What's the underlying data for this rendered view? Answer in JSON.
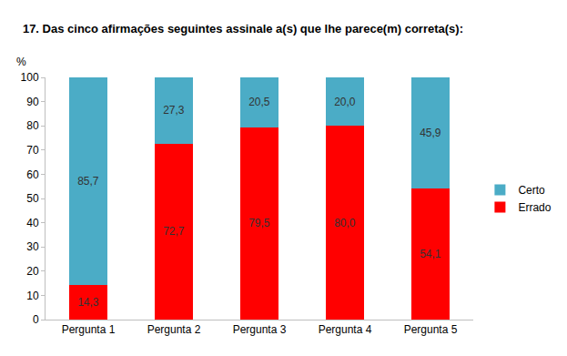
{
  "chart_data": {
    "type": "bar",
    "title": "17. Das cinco afirmações seguintes assinale a(s) que lhe parece(m) correta(s):",
    "y_label": "%",
    "categories": [
      "Pergunta 1",
      "Pergunta 2",
      "Pergunta 3",
      "Pergunta 4",
      "Pergunta 5"
    ],
    "series": [
      {
        "name": "Errado",
        "color": "#ff0000",
        "values": [
          14.3,
          72.7,
          79.5,
          80.0,
          54.1
        ],
        "value_labels": [
          "14,3",
          "72,7",
          "79,5",
          "80,0",
          "54,1"
        ]
      },
      {
        "name": "Certo",
        "color": "#4bacc6",
        "values": [
          85.7,
          27.3,
          20.5,
          20.0,
          45.9
        ],
        "value_labels": [
          "85,7",
          "27,3",
          "20,5",
          "20,0",
          "45,9"
        ]
      }
    ],
    "stacked": true,
    "data_labels": true,
    "legend": "right",
    "grid": false,
    "ylim": [
      0,
      100
    ],
    "yticks": [
      0,
      10,
      20,
      30,
      40,
      50,
      60,
      70,
      80,
      90,
      100
    ]
  }
}
